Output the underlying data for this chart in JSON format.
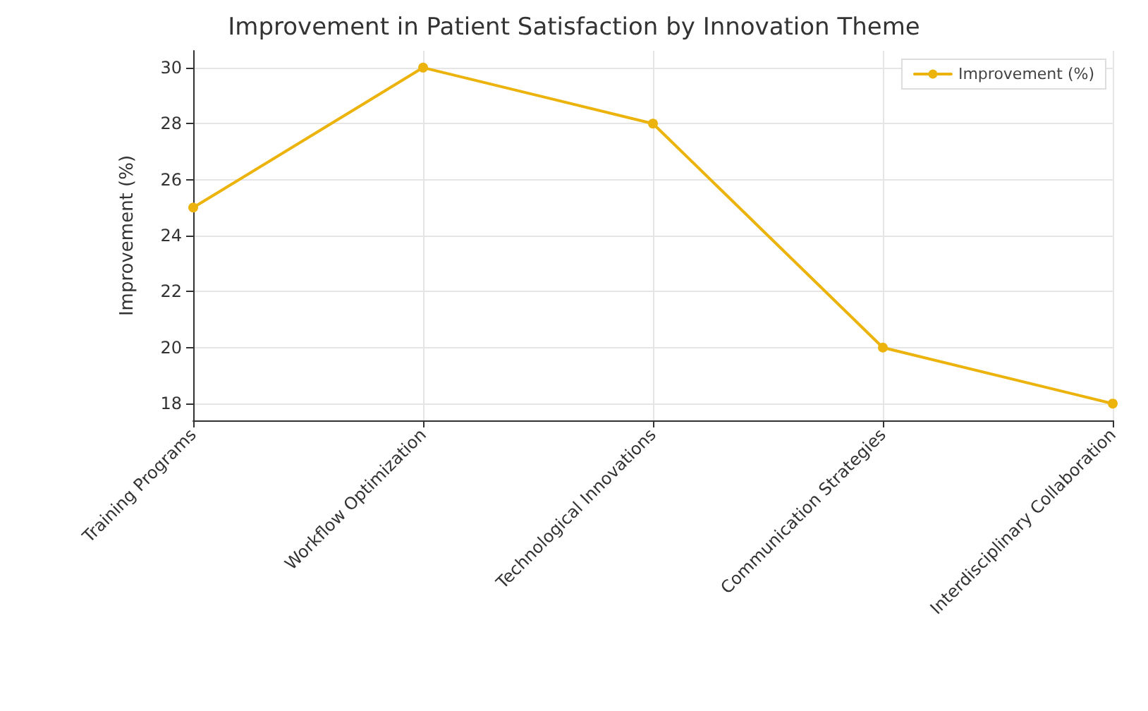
{
  "chart_data": {
    "type": "line",
    "title": "Improvement in Patient Satisfaction by Innovation Theme",
    "ylabel": "Improvement (%)",
    "categories": [
      "Training Programs",
      "Workflow Optimization",
      "Technological Innovations",
      "Communication Strategies",
      "Interdisciplinary Collaboration"
    ],
    "series": [
      {
        "name": "Improvement (%)",
        "color": "#ebb30c",
        "values": [
          25,
          30,
          28,
          20,
          18
        ]
      }
    ],
    "ylim": [
      17.4,
      30.6
    ],
    "yticks": [
      18,
      20,
      22,
      24,
      26,
      28,
      30
    ],
    "grid": true,
    "legend": "top right",
    "marker": "circle",
    "line_style": "solid"
  }
}
